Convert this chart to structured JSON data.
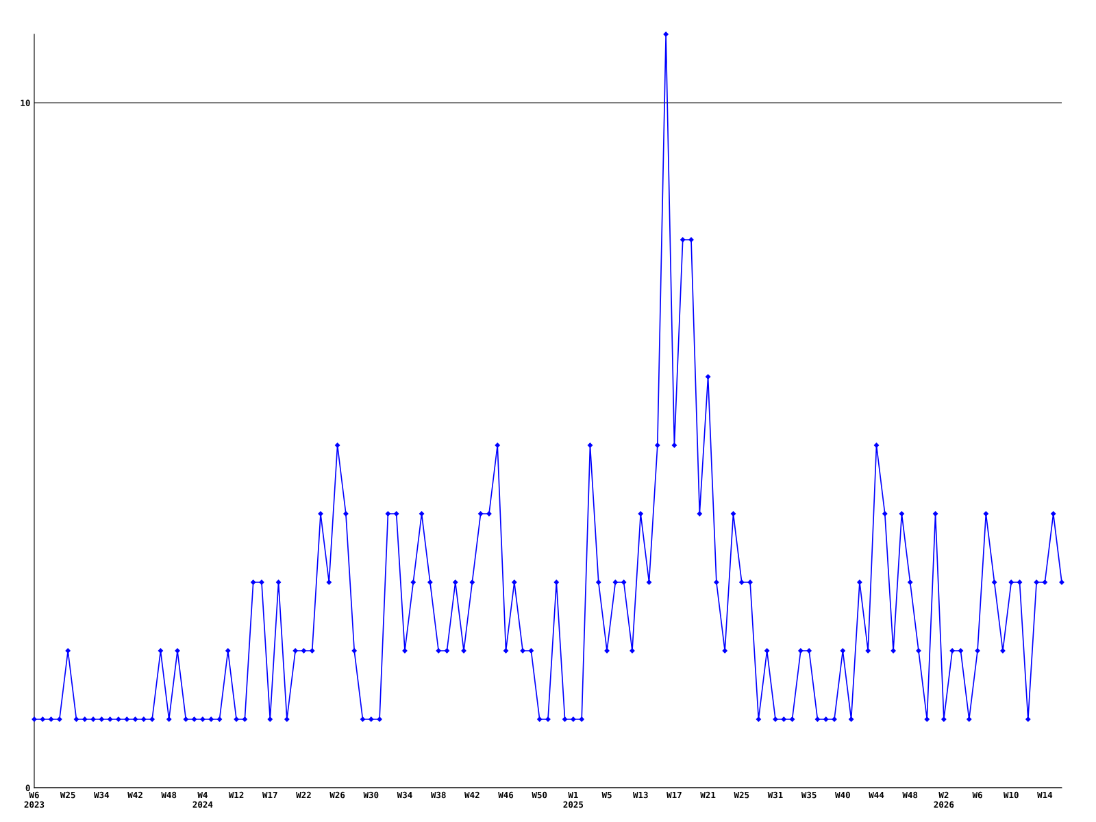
{
  "chart_data": {
    "type": "line",
    "categories": [
      "W6\n2023",
      null,
      null,
      null,
      "W25",
      null,
      null,
      null,
      "W34",
      null,
      null,
      null,
      "W42",
      null,
      null,
      null,
      "W48",
      null,
      null,
      null,
      "W4\n2024",
      null,
      null,
      null,
      "W12",
      null,
      null,
      null,
      "W17",
      null,
      null,
      null,
      "W22",
      null,
      null,
      null,
      "W26",
      null,
      null,
      null,
      "W30",
      null,
      null,
      null,
      "W34",
      null,
      null,
      null,
      "W38",
      null,
      null,
      null,
      "W42",
      null,
      null,
      null,
      "W46",
      null,
      null,
      null,
      "W50",
      null,
      null,
      null,
      "W1\n2025",
      null,
      null,
      null,
      "W5",
      null,
      null,
      null,
      "W13",
      null,
      null,
      null,
      "W17",
      null,
      null,
      null,
      "W21",
      null,
      null,
      null,
      "W25",
      null,
      null,
      null,
      "W31",
      null,
      null,
      null,
      "W35",
      null,
      null,
      null,
      "W40",
      null,
      null,
      null,
      "W44",
      null,
      null,
      null,
      "W48",
      null,
      null,
      null,
      "W2\n2026",
      null,
      null,
      null,
      "W6",
      null,
      null,
      null,
      "W10",
      null,
      null,
      null,
      "W14",
      null,
      null
    ],
    "series": [
      {
        "color": "#0000ff",
        "values": [
          1,
          1,
          1,
          1,
          2,
          1,
          1,
          1,
          1,
          1,
          1,
          1,
          1,
          1,
          1,
          2,
          1,
          2,
          1,
          1,
          1,
          1,
          1,
          2,
          1,
          1,
          3,
          3,
          1,
          3,
          1,
          2,
          2,
          2,
          4,
          3,
          5,
          4,
          2,
          1,
          1,
          1,
          4,
          4,
          2,
          3,
          4,
          3,
          2,
          2,
          3,
          2,
          3,
          4,
          4,
          5,
          2,
          3,
          2,
          2,
          1,
          1,
          3,
          1,
          1,
          1,
          5,
          3,
          2,
          3,
          3,
          2,
          4,
          3,
          5,
          11,
          5,
          8,
          8,
          4,
          6,
          3,
          2,
          4,
          3,
          3,
          1,
          2,
          1,
          1,
          1,
          2,
          2,
          1,
          1,
          1,
          2,
          1,
          3,
          2,
          5,
          4,
          2,
          4,
          3,
          2,
          1,
          4,
          1,
          2,
          2,
          1,
          2,
          4,
          3,
          2,
          3,
          3,
          1,
          3,
          3,
          4,
          3
        ]
      }
    ],
    "ylim": [
      0,
      11
    ],
    "yticks": [
      0,
      10
    ],
    "grid": "y",
    "marker": "diamond",
    "line_style": "solid",
    "legend": false
  }
}
